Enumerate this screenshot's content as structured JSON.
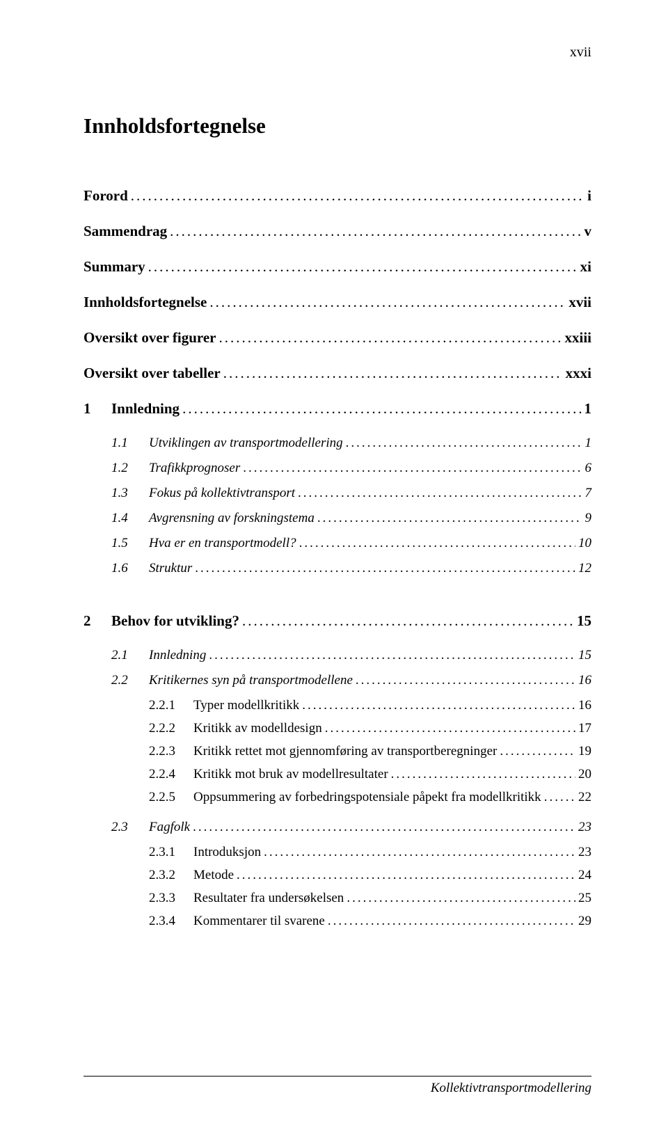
{
  "header": {
    "page_number": "xvii"
  },
  "title": "Innholdsfortegnelse",
  "leader_text": "....................................................................................................................................................................................................",
  "front_matter": [
    {
      "label": "Forord",
      "page": "i"
    },
    {
      "label": "Sammendrag",
      "page": "v"
    },
    {
      "label": "Summary",
      "page": "xi"
    },
    {
      "label": "Innholdsfortegnelse",
      "page": "xvii"
    },
    {
      "label": "Oversikt over figurer",
      "page": "xxiii"
    },
    {
      "label": "Oversikt over tabeller",
      "page": "xxxi"
    }
  ],
  "sections": [
    {
      "num": "1",
      "label": "Innledning",
      "page": "1",
      "subs": [
        {
          "num": "1.1",
          "label": "Utviklingen av transportmodellering",
          "page": "1"
        },
        {
          "num": "1.2",
          "label": "Trafikkprognoser",
          "page": "6"
        },
        {
          "num": "1.3",
          "label": "Fokus på kollektivtransport",
          "page": "7"
        },
        {
          "num": "1.4",
          "label": "Avgrensning av forskningstema",
          "page": "9"
        },
        {
          "num": "1.5",
          "label": "Hva er en transportmodell?",
          "page": "10"
        },
        {
          "num": "1.6",
          "label": "Struktur",
          "page": "12"
        }
      ]
    },
    {
      "num": "2",
      "label": "Behov for utvikling?",
      "page": "15",
      "subs": [
        {
          "num": "2.1",
          "label": "Innledning",
          "page": "15"
        },
        {
          "num": "2.2",
          "label": "Kritikernes syn på transportmodellene",
          "page": "16",
          "subs": [
            {
              "num": "2.2.1",
              "label": "Typer modellkritikk",
              "page": "16"
            },
            {
              "num": "2.2.2",
              "label": "Kritikk av modelldesign",
              "page": "17"
            },
            {
              "num": "2.2.3",
              "label": "Kritikk rettet mot gjennomføring av transportberegninger",
              "page": "19"
            },
            {
              "num": "2.2.4",
              "label": "Kritikk mot bruk av modellresultater",
              "page": "20"
            },
            {
              "num": "2.2.5",
              "label": "Oppsummering av forbedringspotensiale påpekt fra modellkritikk",
              "page": "22"
            }
          ]
        },
        {
          "num": "2.3",
          "label": "Fagfolk",
          "page": "23",
          "subs": [
            {
              "num": "2.3.1",
              "label": "Introduksjon",
              "page": "23"
            },
            {
              "num": "2.3.2",
              "label": "Metode",
              "page": "24"
            },
            {
              "num": "2.3.3",
              "label": "Resultater fra undersøkelsen",
              "page": "25"
            },
            {
              "num": "2.3.4",
              "label": "Kommentarer til svarene",
              "page": "29"
            }
          ]
        }
      ]
    }
  ],
  "footer": {
    "caption": "Kollektivtransportmodellering"
  }
}
